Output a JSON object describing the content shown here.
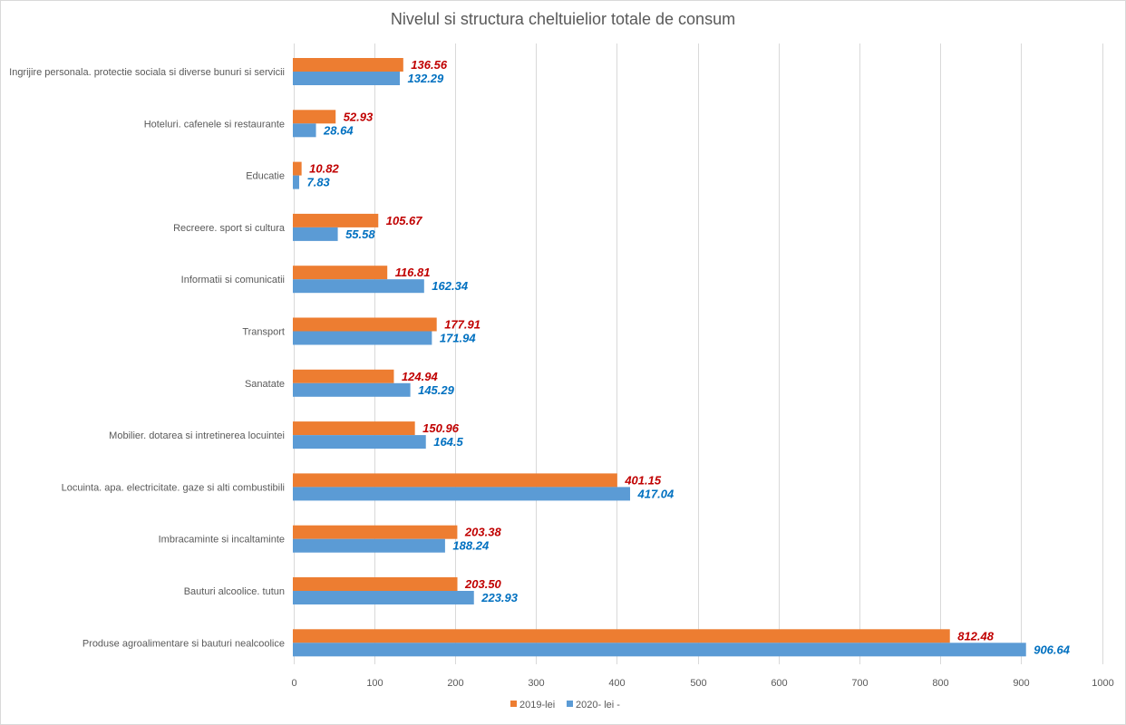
{
  "chart_data": {
    "type": "bar",
    "orientation": "horizontal",
    "title": "Nivelul si structura cheltuielior totale de consum",
    "xlabel": "",
    "ylabel": "",
    "xlim": [
      0,
      1000
    ],
    "xticks": [
      0,
      100,
      200,
      300,
      400,
      500,
      600,
      700,
      800,
      900,
      1000
    ],
    "grid": true,
    "legend_position": "bottom",
    "categories": [
      "Ingrijire personala. protectie sociala si diverse bunuri si servicii",
      "Hoteluri. cafenele si restaurante",
      "Educatie",
      "Recreere. sport si cultura",
      "Informatii si comunicatii",
      "Transport",
      "Sanatate",
      "Mobilier. dotarea si intretinerea locuintei",
      "Locuinta. apa. electricitate. gaze si alti combustibili",
      "Imbracaminte si incaltaminte",
      "Bauturi alcoolice. tutun",
      "Produse agroalimentare si bauturi nealcoolice"
    ],
    "series": [
      {
        "name": "2019-lei",
        "color": "#ed7d31",
        "label_color": "#c00000",
        "values": [
          136.56,
          52.93,
          10.82,
          105.67,
          116.81,
          177.91,
          124.94,
          150.96,
          401.15,
          203.38,
          203.5,
          812.48
        ],
        "labels": [
          "136.56",
          "52.93",
          "10.82",
          "105.67",
          "116.81",
          "177.91",
          "124.94",
          "150.96",
          "401.15",
          "203.38",
          "203.50",
          "812.48"
        ]
      },
      {
        "name": "2020- lei -",
        "color": "#5b9bd5",
        "label_color": "#0070c0",
        "values": [
          132.29,
          28.64,
          7.83,
          55.58,
          162.34,
          171.94,
          145.29,
          164.5,
          417.04,
          188.24,
          223.93,
          906.64
        ],
        "labels": [
          "132.29",
          "28.64",
          "7.83",
          "55.58",
          "162.34",
          "171.94",
          "145.29",
          "164.5",
          "417.04",
          "188.24",
          "223.93",
          "906.64"
        ]
      }
    ]
  }
}
